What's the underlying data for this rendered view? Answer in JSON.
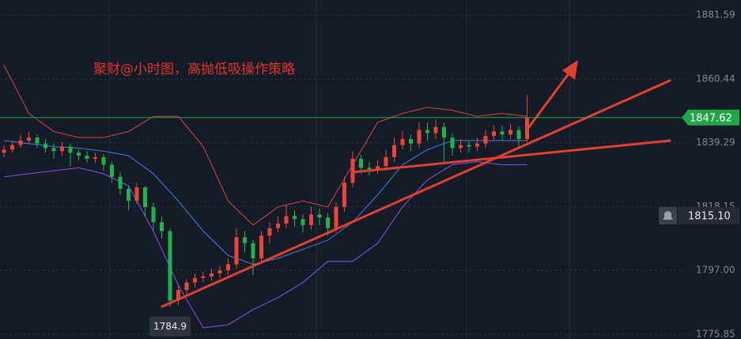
{
  "chart_data": {
    "type": "candlestick",
    "annotation": "聚财@小时图，高抛低吸操作策略",
    "ylim": [
      1774.28,
      1886.55
    ],
    "yticks": [
      1881.59,
      1860.44,
      1839.29,
      1818.15,
      {
        "value": 1797,
        "label": "1797.00"
      },
      1775.85
    ],
    "grid": true,
    "up_color": "#e8453c",
    "down_color": "#22b14c",
    "open": [
      1836.0,
      1837.0,
      1838.5,
      1840.0,
      1841.0,
      1839.0,
      1837.5,
      1836.5,
      1838.0,
      1836.0,
      1835.0,
      1834.0,
      1834.5,
      1832.0,
      1828.0,
      1824.0,
      1820.0,
      1824.5,
      1818.0,
      1813.0,
      1810.0,
      1787.0,
      1790.5,
      1793.0,
      1794.5,
      1795.0,
      1796.0,
      1797.0,
      1799.0,
      1808.0,
      1806.0,
      1801.0,
      1808.5,
      1811.0,
      1812.5,
      1815.0,
      1814.0,
      1812.0,
      1815.5,
      1814.5,
      1811.0,
      1818.0,
      1826.0,
      1834.0,
      1831.0,
      1830.5,
      1831.5,
      1834.5,
      1838.5,
      1840.5,
      1839.0,
      1843.5,
      1842.5,
      1844.5,
      1841.0,
      1837.5,
      1838.5,
      1838.0,
      1839.0,
      1841.5,
      1843.0,
      1842.0,
      1843.5,
      1840.5
    ],
    "high": [
      1838.5,
      1840,
      1842,
      1843,
      1842,
      1840.5,
      1839,
      1839.5,
      1839,
      1837,
      1836.5,
      1836,
      1835.5,
      1833,
      1829.5,
      1825,
      1826,
      1825,
      1819.5,
      1815,
      1811,
      1792,
      1794,
      1796,
      1796.5,
      1797.5,
      1798.5,
      1801,
      1811,
      1810,
      1807,
      1810,
      1813,
      1815,
      1818.5,
      1817,
      1815.5,
      1818,
      1817.5,
      1816,
      1819.5,
      1828,
      1836.5,
      1835.5,
      1833,
      1833.5,
      1837,
      1841,
      1843,
      1842,
      1846,
      1846,
      1847,
      1846,
      1842.5,
      1840.5,
      1840,
      1841,
      1843.5,
      1845,
      1845,
      1845.5,
      1844.5,
      1855
    ],
    "low": [
      1834.5,
      1836,
      1837.5,
      1839,
      1837.5,
      1836,
      1834,
      1835,
      1831.5,
      1833.5,
      1832.5,
      1832.5,
      1830,
      1826,
      1822,
      1817,
      1819,
      1815,
      1810.5,
      1807.5,
      1784.9,
      1785.5,
      1789,
      1791.5,
      1793,
      1793.5,
      1794.5,
      1795.5,
      1797.5,
      1803,
      1795.5,
      1799.5,
      1806,
      1809.5,
      1811,
      1811.5,
      1809.5,
      1810.5,
      1812,
      1808.5,
      1809.5,
      1816.5,
      1824.5,
      1829,
      1828.5,
      1829,
      1830,
      1833,
      1837,
      1836.5,
      1837.5,
      1840,
      1840.5,
      1833,
      1835,
      1836,
      1836,
      1836.5,
      1837.5,
      1840,
      1840,
      1840.5,
      1838,
      1839.5
    ],
    "close": [
      1837.0,
      1838.5,
      1840.0,
      1841.0,
      1839.0,
      1837.5,
      1836.5,
      1838.0,
      1836.0,
      1835.0,
      1834.0,
      1834.5,
      1832.0,
      1828.0,
      1824.0,
      1820.0,
      1824.5,
      1818.0,
      1813.0,
      1810.0,
      1787.0,
      1790.5,
      1793.0,
      1794.5,
      1795.0,
      1796.0,
      1797.0,
      1799.0,
      1808.0,
      1806.0,
      1801.0,
      1808.5,
      1811.0,
      1812.5,
      1815.0,
      1814.0,
      1812.0,
      1815.5,
      1814.5,
      1811.0,
      1818.0,
      1826.0,
      1834.0,
      1831.0,
      1830.5,
      1831.5,
      1834.5,
      1838.5,
      1840.5,
      1839.0,
      1843.5,
      1842.5,
      1844.5,
      1841.0,
      1837.5,
      1838.5,
      1838.0,
      1839.0,
      1841.5,
      1843.0,
      1842.0,
      1843.5,
      1840.5,
      1847.62
    ],
    "bands": {
      "x": [
        0,
        3,
        6,
        9,
        12,
        15,
        18,
        21,
        24,
        27,
        30,
        33,
        36,
        39,
        42,
        45,
        48,
        51,
        54,
        57,
        60,
        63
      ],
      "upper": [
        1865,
        1849,
        1843,
        1841,
        1841,
        1843,
        1848,
        1848,
        1838,
        1820,
        1812,
        1818,
        1820,
        1818,
        1832,
        1846,
        1849,
        1851,
        1850,
        1848,
        1849,
        1848
      ],
      "middle": [
        1840,
        1839,
        1838,
        1837.5,
        1836.5,
        1835,
        1829,
        1820,
        1810,
        1802,
        1799,
        1801,
        1804,
        1807,
        1813,
        1822,
        1832,
        1837,
        1840,
        1840,
        1840,
        1840
      ],
      "lower": [
        1828,
        1829,
        1830,
        1831,
        1829,
        1825,
        1810,
        1792,
        1778,
        1779,
        1784,
        1788,
        1793,
        1800,
        1800,
        1806,
        1818,
        1827,
        1832,
        1833,
        1832,
        1832
      ],
      "upper_color": "#d0473b",
      "middle_color": "#3f7fe0",
      "lower_color": "#8a4fe0"
    },
    "current_price": 1847.62,
    "current_color": "#22a447",
    "alert_price": {
      "value": 1815.1,
      "label": "1815.10"
    },
    "low_label": 1784.9
  }
}
